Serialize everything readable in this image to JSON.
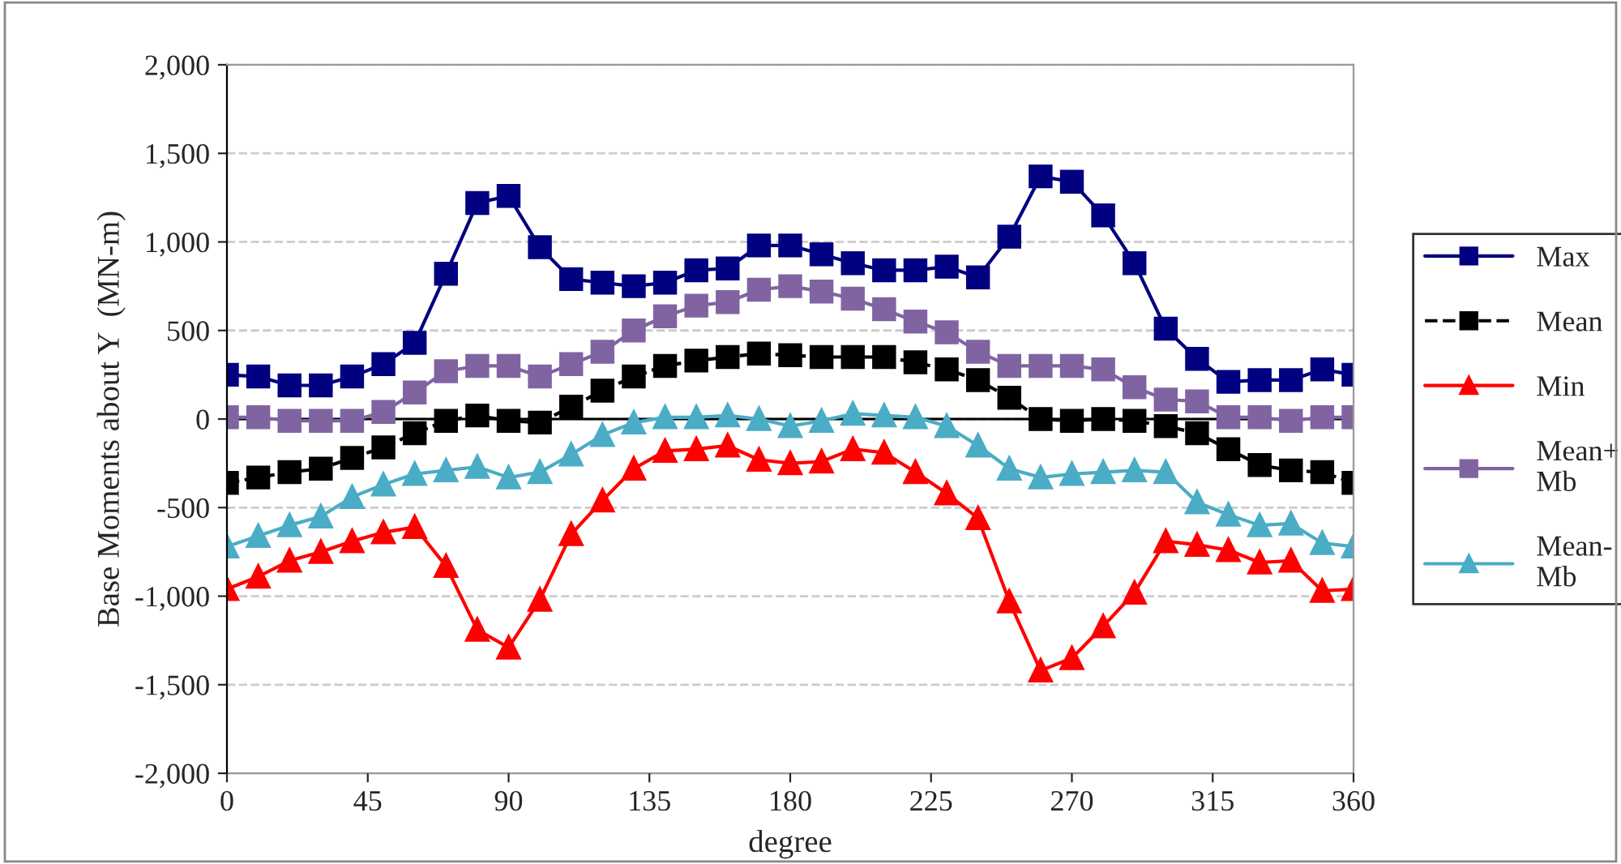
{
  "chart_data": {
    "type": "line",
    "xlabel": "degree",
    "ylabel": "Base Moments about Y  (MN-m)",
    "x": [
      0,
      10,
      20,
      30,
      40,
      50,
      60,
      70,
      80,
      90,
      100,
      110,
      120,
      130,
      140,
      150,
      160,
      170,
      180,
      190,
      200,
      210,
      220,
      230,
      240,
      250,
      260,
      270,
      280,
      290,
      300,
      310,
      320,
      330,
      340,
      350,
      360
    ],
    "xlim": [
      0,
      360
    ],
    "xticks": [
      0,
      45,
      90,
      135,
      180,
      225,
      270,
      315,
      360
    ],
    "ylim": [
      -2000,
      2000
    ],
    "yticks": [
      {
        "value": -2000,
        "label": "-2,000"
      },
      {
        "value": -1500,
        "label": "-1,500"
      },
      {
        "value": -1000,
        "label": "-1,000"
      },
      {
        "value": -500,
        "label": "-500"
      },
      0,
      500,
      {
        "value": 1000,
        "label": "1,000"
      },
      {
        "value": 1500,
        "label": "1,500"
      },
      {
        "value": 2000,
        "label": "2,000"
      }
    ],
    "grid": "y",
    "legend": "right",
    "ref_lines": [
      {
        "axis": "y",
        "value": 0,
        "color": "#000000"
      }
    ],
    "series": [
      {
        "name": "Max",
        "color": "#000080",
        "marker": "square",
        "line_style": "solid",
        "values": [
          250,
          240,
          190,
          190,
          240,
          310,
          430,
          820,
          1220,
          1260,
          970,
          790,
          770,
          750,
          770,
          840,
          850,
          980,
          980,
          930,
          880,
          840,
          840,
          860,
          800,
          1030,
          1370,
          1340,
          1150,
          880,
          510,
          340,
          210,
          220,
          220,
          280,
          250
        ]
      },
      {
        "name": "Mean",
        "color": "#000000",
        "marker": "square",
        "line_style": "dashed",
        "values": [
          -360,
          -330,
          -300,
          -280,
          -220,
          -160,
          -80,
          -10,
          20,
          -10,
          -20,
          70,
          160,
          240,
          300,
          330,
          350,
          370,
          360,
          350,
          350,
          350,
          320,
          280,
          220,
          120,
          0,
          -10,
          0,
          -10,
          -40,
          -80,
          -170,
          -260,
          -290,
          -300,
          -360
        ]
      },
      {
        "name": "Min",
        "color": "#ff0000",
        "marker": "triangle",
        "line_style": "solid",
        "values": [
          -960,
          -890,
          -800,
          -750,
          -690,
          -640,
          -610,
          -830,
          -1190,
          -1290,
          -1020,
          -650,
          -460,
          -280,
          -180,
          -170,
          -150,
          -230,
          -250,
          -240,
          -170,
          -190,
          -300,
          -420,
          -560,
          -1030,
          -1420,
          -1350,
          -1170,
          -980,
          -690,
          -710,
          -740,
          -810,
          -800,
          -970,
          -960
        ]
      },
      {
        "name": "Mean+\nMb",
        "color": "#8064a2",
        "marker": "square",
        "line_style": "solid",
        "values": [
          10,
          10,
          -10,
          -10,
          -10,
          40,
          150,
          270,
          300,
          300,
          240,
          310,
          380,
          500,
          580,
          640,
          660,
          730,
          750,
          720,
          680,
          620,
          550,
          490,
          380,
          300,
          300,
          300,
          280,
          180,
          110,
          100,
          10,
          10,
          -10,
          10,
          10
        ]
      },
      {
        "name": "Mean-\nMb",
        "color": "#4bacc6",
        "marker": "triangle",
        "line_style": "solid",
        "values": [
          -720,
          -660,
          -600,
          -550,
          -440,
          -370,
          -310,
          -290,
          -270,
          -330,
          -300,
          -200,
          -90,
          -20,
          10,
          10,
          20,
          0,
          -40,
          -10,
          30,
          20,
          10,
          -40,
          -150,
          -280,
          -330,
          -310,
          -300,
          -290,
          -300,
          -470,
          -540,
          -600,
          -590,
          -700,
          -720
        ]
      }
    ]
  }
}
